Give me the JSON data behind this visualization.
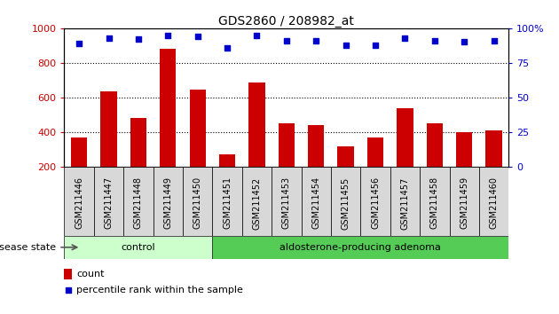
{
  "title": "GDS2860 / 208982_at",
  "samples": [
    "GSM211446",
    "GSM211447",
    "GSM211448",
    "GSM211449",
    "GSM211450",
    "GSM211451",
    "GSM211452",
    "GSM211453",
    "GSM211454",
    "GSM211455",
    "GSM211456",
    "GSM211457",
    "GSM211458",
    "GSM211459",
    "GSM211460"
  ],
  "counts": [
    370,
    635,
    480,
    880,
    645,
    270,
    685,
    448,
    438,
    315,
    370,
    535,
    448,
    400,
    410
  ],
  "percentiles": [
    89,
    93,
    92,
    95,
    94,
    86,
    95,
    91,
    91,
    88,
    88,
    93,
    91,
    90,
    91
  ],
  "groups": [
    "control",
    "control",
    "control",
    "control",
    "control",
    "aldosterone-producing adenoma",
    "aldosterone-producing adenoma",
    "aldosterone-producing adenoma",
    "aldosterone-producing adenoma",
    "aldosterone-producing adenoma",
    "aldosterone-producing adenoma",
    "aldosterone-producing adenoma",
    "aldosterone-producing adenoma",
    "aldosterone-producing adenoma",
    "aldosterone-producing adenoma"
  ],
  "ylim_left": [
    200,
    1000
  ],
  "ylim_right": [
    0,
    100
  ],
  "yticks_left": [
    200,
    400,
    600,
    800,
    1000
  ],
  "yticks_right": [
    0,
    25,
    50,
    75,
    100
  ],
  "bar_color": "#cc0000",
  "scatter_color": "#0000cc",
  "group_colors": {
    "control": "#ccffcc",
    "aldosterone-producing adenoma": "#55cc55"
  },
  "bar_width": 0.55,
  "label_count": "count",
  "label_percentile": "percentile rank within the sample",
  "disease_state_label": "disease state"
}
